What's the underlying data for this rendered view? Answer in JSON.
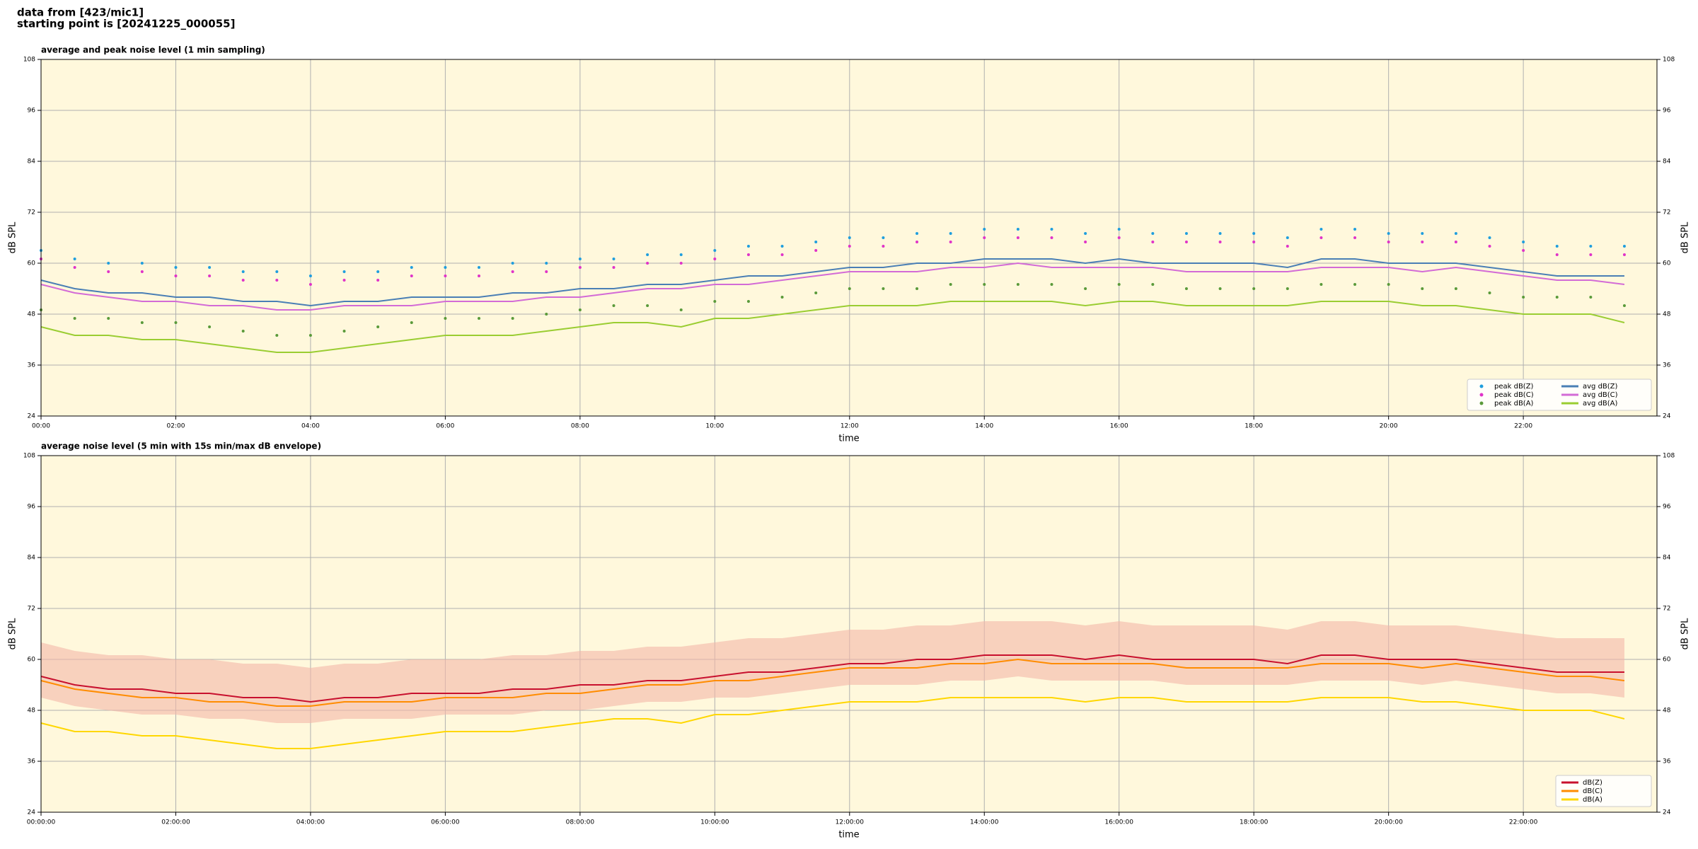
{
  "header": {
    "line1": "data from [423/mic1]",
    "line2": "starting point is [20241225_000055]"
  },
  "chart_data": [
    {
      "type": "line",
      "title": "average and peak noise level (1 min sampling)",
      "xlabel": "time",
      "ylabel": "dB SPL",
      "legend": "lower right",
      "grid": true,
      "background": "#fff8dc",
      "x": [
        "00:00",
        "00:30",
        "01:00",
        "01:30",
        "02:00",
        "02:30",
        "03:00",
        "03:30",
        "04:00",
        "04:30",
        "05:00",
        "05:30",
        "06:00",
        "06:30",
        "07:00",
        "07:30",
        "08:00",
        "08:30",
        "09:00",
        "09:30",
        "10:00",
        "10:30",
        "11:00",
        "11:30",
        "12:00",
        "12:30",
        "13:00",
        "13:30",
        "14:00",
        "14:30",
        "15:00",
        "15:30",
        "16:00",
        "16:30",
        "17:00",
        "17:30",
        "18:00",
        "18:30",
        "19:00",
        "19:30",
        "20:00",
        "20:30",
        "21:00",
        "21:30",
        "22:00",
        "22:30",
        "23:00",
        "23:30"
      ],
      "xlim": [
        "00:00",
        "23:59"
      ],
      "xticks": [
        "00:00",
        "02:00",
        "04:00",
        "06:00",
        "08:00",
        "10:00",
        "12:00",
        "14:00",
        "16:00",
        "18:00",
        "20:00",
        "22:00"
      ],
      "ylim": [
        24,
        108
      ],
      "yticks": [
        24,
        36,
        48,
        60,
        72,
        84,
        96,
        108
      ],
      "series": [
        {
          "name": "peak dB(Z)",
          "color": "#1f9ede",
          "marker": "dot",
          "values": [
            63,
            61,
            60,
            60,
            59,
            59,
            58,
            58,
            57,
            58,
            58,
            59,
            59,
            59,
            60,
            60,
            61,
            61,
            62,
            62,
            63,
            64,
            64,
            65,
            66,
            66,
            67,
            67,
            68,
            68,
            68,
            67,
            68,
            67,
            67,
            67,
            67,
            66,
            68,
            68,
            67,
            67,
            67,
            66,
            65,
            64,
            64,
            64
          ]
        },
        {
          "name": "peak dB(C)",
          "color": "#e033c8",
          "marker": "dot",
          "values": [
            61,
            59,
            58,
            58,
            57,
            57,
            56,
            56,
            55,
            56,
            56,
            57,
            57,
            57,
            58,
            58,
            59,
            59,
            60,
            60,
            61,
            62,
            62,
            63,
            64,
            64,
            65,
            65,
            66,
            66,
            66,
            65,
            66,
            65,
            65,
            65,
            65,
            64,
            66,
            66,
            65,
            65,
            65,
            64,
            63,
            62,
            62,
            62
          ]
        },
        {
          "name": "peak dB(A)",
          "color": "#5a9a3a",
          "marker": "dot",
          "values": [
            49,
            47,
            47,
            46,
            46,
            45,
            44,
            43,
            43,
            44,
            45,
            46,
            47,
            47,
            47,
            48,
            49,
            50,
            50,
            49,
            51,
            51,
            52,
            53,
            54,
            54,
            54,
            55,
            55,
            55,
            55,
            54,
            55,
            55,
            54,
            54,
            54,
            54,
            55,
            55,
            55,
            54,
            54,
            53,
            52,
            52,
            52,
            50
          ]
        },
        {
          "name": "avg dB(Z)",
          "color": "#4a7fb5",
          "values": [
            56,
            54,
            53,
            53,
            52,
            52,
            51,
            51,
            50,
            51,
            51,
            52,
            52,
            52,
            53,
            53,
            54,
            54,
            55,
            55,
            56,
            57,
            57,
            58,
            59,
            59,
            60,
            60,
            61,
            61,
            61,
            60,
            61,
            60,
            60,
            60,
            60,
            59,
            61,
            61,
            60,
            60,
            60,
            59,
            58,
            57,
            57,
            57
          ]
        },
        {
          "name": "avg dB(C)",
          "color": "#d36bd6",
          "values": [
            55,
            53,
            52,
            51,
            51,
            50,
            50,
            49,
            49,
            50,
            50,
            50,
            51,
            51,
            51,
            52,
            52,
            53,
            54,
            54,
            55,
            55,
            56,
            57,
            58,
            58,
            58,
            59,
            59,
            60,
            59,
            59,
            59,
            59,
            58,
            58,
            58,
            58,
            59,
            59,
            59,
            58,
            59,
            58,
            57,
            56,
            56,
            55
          ]
        },
        {
          "name": "avg dB(A)",
          "color": "#9acd32",
          "values": [
            45,
            43,
            43,
            42,
            42,
            41,
            40,
            39,
            39,
            40,
            41,
            42,
            43,
            43,
            43,
            44,
            45,
            46,
            46,
            45,
            47,
            47,
            48,
            49,
            50,
            50,
            50,
            51,
            51,
            51,
            51,
            50,
            51,
            51,
            50,
            50,
            50,
            50,
            51,
            51,
            51,
            50,
            50,
            49,
            48,
            48,
            48,
            46
          ]
        }
      ]
    },
    {
      "type": "line",
      "title": "average noise level (5 min with 15s min/max dB envelope)",
      "xlabel": "time",
      "ylabel": "dB SPL",
      "legend": "lower right",
      "grid": true,
      "background": "#fff8dc",
      "x": [
        "00:00:00",
        "00:30:00",
        "01:00:00",
        "01:30:00",
        "02:00:00",
        "02:30:00",
        "03:00:00",
        "03:30:00",
        "04:00:00",
        "04:30:00",
        "05:00:00",
        "05:30:00",
        "06:00:00",
        "06:30:00",
        "07:00:00",
        "07:30:00",
        "08:00:00",
        "08:30:00",
        "09:00:00",
        "09:30:00",
        "10:00:00",
        "10:30:00",
        "11:00:00",
        "11:30:00",
        "12:00:00",
        "12:30:00",
        "13:00:00",
        "13:30:00",
        "14:00:00",
        "14:30:00",
        "15:00:00",
        "15:30:00",
        "16:00:00",
        "16:30:00",
        "17:00:00",
        "17:30:00",
        "18:00:00",
        "18:30:00",
        "19:00:00",
        "19:30:00",
        "20:00:00",
        "20:30:00",
        "21:00:00",
        "21:30:00",
        "22:00:00",
        "22:30:00",
        "23:00:00",
        "23:30:00"
      ],
      "xlim": [
        "00:00:00",
        "23:59:00"
      ],
      "xticks": [
        "00:00:00",
        "02:00:00",
        "04:00:00",
        "06:00:00",
        "08:00:00",
        "10:00:00",
        "12:00:00",
        "14:00:00",
        "16:00:00",
        "18:00:00",
        "20:00:00",
        "22:00:00"
      ],
      "ylim": [
        24,
        108
      ],
      "yticks": [
        24,
        36,
        48,
        60,
        72,
        84,
        96,
        108
      ],
      "band": {
        "color": "#f4b8a8",
        "low": [
          51,
          49,
          48,
          47,
          47,
          46,
          46,
          45,
          45,
          46,
          46,
          46,
          47,
          47,
          47,
          48,
          48,
          49,
          50,
          50,
          51,
          51,
          52,
          53,
          54,
          54,
          54,
          55,
          55,
          56,
          55,
          55,
          55,
          55,
          54,
          54,
          54,
          54,
          55,
          55,
          55,
          54,
          55,
          54,
          53,
          52,
          52,
          51
        ],
        "high": [
          64,
          62,
          61,
          61,
          60,
          60,
          59,
          59,
          58,
          59,
          59,
          60,
          60,
          60,
          61,
          61,
          62,
          62,
          63,
          63,
          64,
          65,
          65,
          66,
          67,
          67,
          68,
          68,
          69,
          69,
          69,
          68,
          69,
          68,
          68,
          68,
          68,
          67,
          69,
          69,
          68,
          68,
          68,
          67,
          66,
          65,
          65,
          65
        ]
      },
      "series": [
        {
          "name": "dB(Z)",
          "color": "#c8102e",
          "values": [
            56,
            54,
            53,
            53,
            52,
            52,
            51,
            51,
            50,
            51,
            51,
            52,
            52,
            52,
            53,
            53,
            54,
            54,
            55,
            55,
            56,
            57,
            57,
            58,
            59,
            59,
            60,
            60,
            61,
            61,
            61,
            60,
            61,
            60,
            60,
            60,
            60,
            59,
            61,
            61,
            60,
            60,
            60,
            59,
            58,
            57,
            57,
            57
          ]
        },
        {
          "name": "dB(C)",
          "color": "#ff8c00",
          "values": [
            55,
            53,
            52,
            51,
            51,
            50,
            50,
            49,
            49,
            50,
            50,
            50,
            51,
            51,
            51,
            52,
            52,
            53,
            54,
            54,
            55,
            55,
            56,
            57,
            58,
            58,
            58,
            59,
            59,
            60,
            59,
            59,
            59,
            59,
            58,
            58,
            58,
            58,
            59,
            59,
            59,
            58,
            59,
            58,
            57,
            56,
            56,
            55
          ]
        },
        {
          "name": "dB(A)",
          "color": "#ffd700",
          "values": [
            45,
            43,
            43,
            42,
            42,
            41,
            40,
            39,
            39,
            40,
            41,
            42,
            43,
            43,
            43,
            44,
            45,
            46,
            46,
            45,
            47,
            47,
            48,
            49,
            50,
            50,
            50,
            51,
            51,
            51,
            51,
            50,
            51,
            51,
            50,
            50,
            50,
            50,
            51,
            51,
            51,
            50,
            50,
            49,
            48,
            48,
            48,
            46
          ]
        }
      ]
    }
  ]
}
